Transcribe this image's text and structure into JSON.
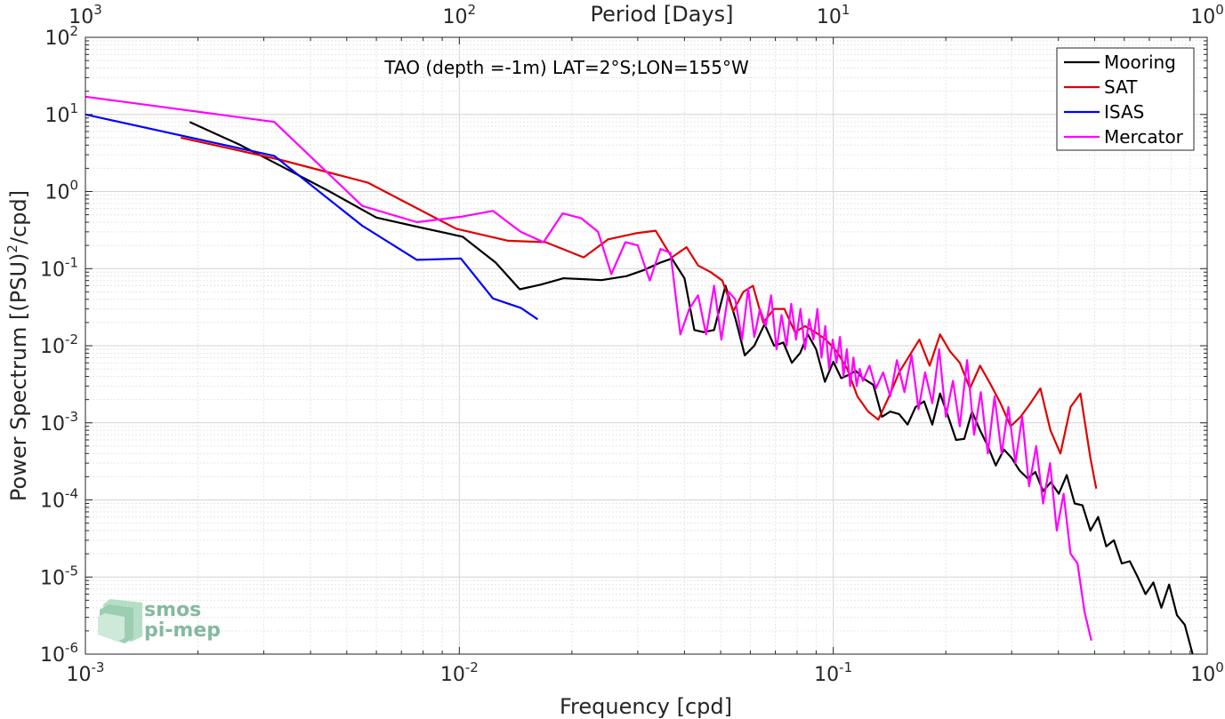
{
  "chart_data": {
    "type": "line",
    "title": "TAO (depth =-1m) LAT=2°S;LON=155°W",
    "xlabel": "Frequency [cpd]",
    "ylabel": "Power Spectrum [(PSU)²/cpd]",
    "ylabel_main": "Power Spectrum [(PSU)",
    "ylabel_sup": "2",
    "ylabel_end": "/cpd]",
    "top_xlabel": "Period [Days]",
    "xscale": "log",
    "yscale": "log",
    "xlim": [
      0.001,
      1
    ],
    "ylim": [
      1e-06,
      100
    ],
    "grid": true,
    "legend_position": "top-right",
    "x_ticks": [
      {
        "value": 0.001,
        "base": "10",
        "exp": "-3"
      },
      {
        "value": 0.01,
        "base": "10",
        "exp": "-2"
      },
      {
        "value": 0.1,
        "base": "10",
        "exp": "-1"
      },
      {
        "value": 1,
        "base": "10",
        "exp": "0"
      }
    ],
    "top_ticks": [
      {
        "value": 0.001,
        "base": "10",
        "exp": "3"
      },
      {
        "value": 0.01,
        "base": "10",
        "exp": "2"
      },
      {
        "value": 0.1,
        "base": "10",
        "exp": "1"
      },
      {
        "value": 1,
        "base": "10",
        "exp": "0"
      }
    ],
    "y_ticks": [
      {
        "value": 100,
        "base": "10",
        "exp": "2"
      },
      {
        "value": 10,
        "base": "10",
        "exp": "1"
      },
      {
        "value": 1,
        "base": "10",
        "exp": "0"
      },
      {
        "value": 0.1,
        "base": "10",
        "exp": "-1"
      },
      {
        "value": 0.01,
        "base": "10",
        "exp": "-2"
      },
      {
        "value": 0.001,
        "base": "10",
        "exp": "-3"
      },
      {
        "value": 0.0001,
        "base": "10",
        "exp": "-4"
      },
      {
        "value": 1e-05,
        "base": "10",
        "exp": "-5"
      },
      {
        "value": 1e-06,
        "base": "10",
        "exp": "-6"
      }
    ],
    "series": [
      {
        "name": "Mooring",
        "color": "#000000",
        "x": [
          0.0019,
          0.0026,
          0.0033,
          0.0045,
          0.006,
          0.0075,
          0.0102,
          0.0125,
          0.0145,
          0.0165,
          0.019,
          0.0215,
          0.024,
          0.028,
          0.031,
          0.0345,
          0.037,
          0.04,
          0.0425,
          0.045,
          0.048,
          0.0515,
          0.0548,
          0.058,
          0.0615,
          0.0655,
          0.0695,
          0.0735,
          0.0775,
          0.0815,
          0.0855,
          0.09,
          0.095,
          0.1,
          0.105,
          0.11,
          0.115,
          0.12,
          0.128,
          0.135,
          0.142,
          0.15,
          0.158,
          0.166,
          0.175,
          0.184,
          0.193,
          0.203,
          0.213,
          0.224,
          0.235,
          0.247,
          0.259,
          0.272,
          0.286,
          0.3,
          0.315,
          0.331,
          0.347,
          0.364,
          0.382,
          0.401,
          0.421,
          0.442,
          0.464,
          0.487,
          0.511,
          0.537,
          0.563,
          0.591,
          0.621,
          0.652,
          0.684,
          0.718,
          0.754,
          0.791,
          0.83,
          0.871,
          0.914
        ],
        "y": [
          8,
          4,
          2.2,
          1.0,
          0.46,
          0.36,
          0.26,
          0.12,
          0.054,
          0.062,
          0.075,
          0.073,
          0.071,
          0.08,
          0.095,
          0.12,
          0.135,
          0.075,
          0.016,
          0.015,
          0.016,
          0.06,
          0.022,
          0.0075,
          0.01,
          0.019,
          0.01,
          0.011,
          0.006,
          0.008,
          0.014,
          0.009,
          0.0034,
          0.0062,
          0.0038,
          0.0042,
          0.0047,
          0.0038,
          0.0031,
          0.0012,
          0.0014,
          0.0013,
          0.00095,
          0.0016,
          0.0019,
          0.00095,
          0.0024,
          0.0012,
          0.0006,
          0.00062,
          0.0014,
          0.0008,
          0.0005,
          0.00028,
          0.00045,
          0.00035,
          0.00024,
          0.00019,
          0.00023,
          0.00013,
          0.00017,
          0.00012,
          0.00021,
          9e-05,
          8.5e-05,
          4e-05,
          6e-05,
          2.5e-05,
          3e-05,
          1.5e-05,
          1.6e-05,
          1e-05,
          6e-06,
          8.5e-06,
          4e-06,
          8e-06,
          3.2e-06,
          2.4e-06,
          1e-06
        ]
      },
      {
        "name": "SAT",
        "color": "#e00000",
        "x": [
          0.0018,
          0.0033,
          0.0057,
          0.0098,
          0.0135,
          0.017,
          0.0215,
          0.025,
          0.03,
          0.0335,
          0.037,
          0.0405,
          0.0435,
          0.047,
          0.0505,
          0.054,
          0.0575,
          0.061,
          0.065,
          0.0695,
          0.074,
          0.079,
          0.084,
          0.0895,
          0.0955,
          0.102,
          0.109,
          0.116,
          0.124,
          0.132,
          0.141,
          0.15,
          0.16,
          0.17,
          0.181,
          0.193,
          0.205,
          0.218,
          0.232,
          0.247,
          0.263,
          0.28,
          0.298,
          0.317,
          0.337,
          0.358,
          0.381,
          0.405,
          0.431,
          0.458,
          0.487,
          0.505
        ],
        "y": [
          5,
          2.6,
          1.3,
          0.33,
          0.23,
          0.22,
          0.14,
          0.24,
          0.29,
          0.31,
          0.14,
          0.19,
          0.11,
          0.09,
          0.07,
          0.028,
          0.05,
          0.06,
          0.02,
          0.03,
          0.03,
          0.015,
          0.018,
          0.015,
          0.012,
          0.0085,
          0.005,
          0.0022,
          0.0014,
          0.0011,
          0.0022,
          0.0045,
          0.0075,
          0.012,
          0.0055,
          0.014,
          0.0085,
          0.006,
          0.0028,
          0.0055,
          0.0032,
          0.0018,
          0.0009,
          0.0012,
          0.0018,
          0.0028,
          0.0008,
          0.0004,
          0.0016,
          0.0024,
          0.00035,
          0.00014
        ]
      },
      {
        "name": "ISAS",
        "color": "#0000ff",
        "x": [
          0.001,
          0.0032,
          0.0055,
          0.0077,
          0.0101,
          0.0123,
          0.0146,
          0.0162
        ],
        "y": [
          10,
          2.9,
          0.36,
          0.13,
          0.135,
          0.041,
          0.031,
          0.022
        ]
      },
      {
        "name": "Mercator",
        "color": "#ff00ff",
        "x": [
          0.001,
          0.0032,
          0.0055,
          0.0077,
          0.0101,
          0.0123,
          0.0146,
          0.0168,
          0.0189,
          0.0212,
          0.0235,
          0.0255,
          0.0278,
          0.03,
          0.0323,
          0.0345,
          0.0367,
          0.039,
          0.0412,
          0.0435,
          0.0457,
          0.048,
          0.0502,
          0.0525,
          0.0547,
          0.057,
          0.0592,
          0.0615,
          0.0637,
          0.066,
          0.0682,
          0.0705,
          0.0727,
          0.075,
          0.0772,
          0.0795,
          0.0817,
          0.084,
          0.0862,
          0.0885,
          0.0907,
          0.093,
          0.0952,
          0.0975,
          0.0997,
          0.102,
          0.1042,
          0.1065,
          0.1087,
          0.111,
          0.1132,
          0.1155,
          0.1177,
          0.12,
          0.125,
          0.13,
          0.136,
          0.142,
          0.148,
          0.155,
          0.162,
          0.169,
          0.176,
          0.184,
          0.192,
          0.2,
          0.209,
          0.218,
          0.228,
          0.238,
          0.248,
          0.259,
          0.27,
          0.282,
          0.294,
          0.307,
          0.32,
          0.334,
          0.349,
          0.364,
          0.38,
          0.396,
          0.413,
          0.431,
          0.45,
          0.47,
          0.49
        ],
        "y": [
          17,
          8,
          0.65,
          0.4,
          0.47,
          0.56,
          0.3,
          0.22,
          0.52,
          0.45,
          0.3,
          0.085,
          0.22,
          0.2,
          0.07,
          0.18,
          0.16,
          0.014,
          0.03,
          0.045,
          0.014,
          0.06,
          0.012,
          0.05,
          0.04,
          0.012,
          0.055,
          0.013,
          0.03,
          0.018,
          0.045,
          0.009,
          0.025,
          0.01,
          0.035,
          0.012,
          0.03,
          0.009,
          0.022,
          0.012,
          0.03,
          0.007,
          0.018,
          0.005,
          0.012,
          0.006,
          0.013,
          0.004,
          0.009,
          0.003,
          0.007,
          0.003,
          0.005,
          0.0035,
          0.0055,
          0.0028,
          0.0045,
          0.0022,
          0.0065,
          0.0025,
          0.0075,
          0.0015,
          0.0045,
          0.0018,
          0.009,
          0.0012,
          0.0035,
          0.0009,
          0.0065,
          0.0007,
          0.0025,
          0.0004,
          0.0022,
          0.0004,
          0.0016,
          0.0003,
          0.0012,
          0.00015,
          0.0005,
          9e-05,
          0.0003,
          4e-05,
          0.00012,
          2e-05,
          1.5e-05,
          3.5e-06,
          1.5e-06
        ]
      }
    ]
  }
}
